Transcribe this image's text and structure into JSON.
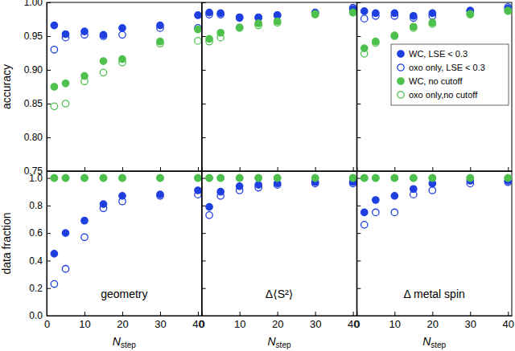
{
  "chart_data": [
    {
      "type": "scatter",
      "y_label": "accuracy",
      "tick_labels": "y",
      "x": [
        2,
        5,
        10,
        15,
        20,
        30,
        40
      ],
      "xlim": [
        0,
        41
      ],
      "xticks": [
        0,
        10,
        20,
        30,
        40
      ],
      "ylim": [
        0.75,
        1.0
      ],
      "yticks": [
        {
          "value": 0.75,
          "label": "0.75"
        },
        {
          "value": 0.8,
          "label": "0.80"
        },
        {
          "value": 0.85,
          "label": "0.85"
        },
        {
          "value": 0.9,
          "label": "0.90"
        },
        {
          "value": 0.95,
          "label": "0.95"
        },
        {
          "value": 1.0,
          "label": "1.00"
        }
      ],
      "series": [
        {
          "color": "#1f3fe0",
          "marker": "filled-circle",
          "values": [
            0.966,
            0.953,
            0.957,
            0.952,
            0.962,
            0.966,
            0.981
          ]
        },
        {
          "color": "#1f3fe0",
          "marker": "open-circle",
          "values": [
            0.93,
            0.948,
            0.952,
            0.95,
            0.952,
            0.962,
            0.962
          ]
        },
        {
          "color": "#4ec04e",
          "marker": "filled-circle",
          "values": [
            0.875,
            0.88,
            0.891,
            0.913,
            0.916,
            0.942,
            0.96
          ]
        },
        {
          "color": "#4ec04e",
          "marker": "open-circle",
          "values": [
            0.846,
            0.85,
            0.883,
            0.896,
            0.911,
            0.939,
            0.943
          ]
        }
      ]
    },
    {
      "type": "scatter",
      "tick_labels": false,
      "x": [
        2,
        5,
        10,
        15,
        20,
        30,
        40
      ],
      "xlim": [
        0,
        41
      ],
      "xticks": [
        0,
        10,
        20,
        30,
        40
      ],
      "ylim": [
        0.75,
        1.0
      ],
      "yticks": [
        0.75,
        0.8,
        0.85,
        0.9,
        0.95,
        1.0
      ],
      "series": [
        {
          "color": "#1f3fe0",
          "marker": "filled-circle",
          "values": [
            0.985,
            0.984,
            0.978,
            0.978,
            0.981,
            0.985,
            0.99
          ]
        },
        {
          "color": "#1f3fe0",
          "marker": "open-circle",
          "values": [
            0.982,
            0.982,
            0.977,
            0.977,
            0.981,
            0.984,
            0.992
          ]
        },
        {
          "color": "#4ec04e",
          "marker": "filled-circle",
          "values": [
            0.946,
            0.955,
            0.963,
            0.969,
            0.972,
            0.983,
            0.985
          ]
        },
        {
          "color": "#4ec04e",
          "marker": "open-circle",
          "values": [
            0.942,
            0.948,
            0.962,
            0.966,
            0.97,
            0.982,
            0.985
          ]
        }
      ]
    },
    {
      "type": "scatter",
      "tick_labels": false,
      "legend": "upper right",
      "x": [
        2,
        5,
        10,
        15,
        20,
        30,
        40
      ],
      "xlim": [
        0,
        41
      ],
      "xticks": [
        0,
        10,
        20,
        30,
        40
      ],
      "ylim": [
        0.75,
        1.0
      ],
      "yticks": [
        0.75,
        0.8,
        0.85,
        0.9,
        0.95,
        1.0
      ],
      "series": [
        {
          "name": "WC, LSE < 0.3",
          "color": "#1f3fe0",
          "marker": "filled-circle",
          "values": [
            0.987,
            0.984,
            0.984,
            0.98,
            0.984,
            0.988,
            0.991
          ]
        },
        {
          "name": "oxo only, LSE < 0.3",
          "color": "#1f3fe0",
          "marker": "open-circle",
          "values": [
            0.976,
            0.98,
            0.98,
            0.977,
            0.98,
            0.987,
            0.993
          ]
        },
        {
          "name": "WC, no cutoff",
          "color": "#4ec04e",
          "marker": "filled-circle",
          "values": [
            0.932,
            0.942,
            0.951,
            0.964,
            0.97,
            0.983,
            0.988
          ]
        },
        {
          "name": "oxo only,no cutoff",
          "color": "#4ec04e",
          "marker": "open-circle",
          "values": [
            0.924,
            0.94,
            0.95,
            0.962,
            0.968,
            0.982,
            0.987
          ]
        }
      ]
    },
    {
      "type": "scatter",
      "y_label": "data fraction",
      "x_label": "N",
      "x_label_sub": "step",
      "annotation": "geometry",
      "x": [
        2,
        5,
        10,
        15,
        20,
        30,
        40
      ],
      "xlim": [
        0,
        41
      ],
      "xticks": [
        0,
        10,
        20,
        30,
        40
      ],
      "ylim": [
        0,
        1.05
      ],
      "yticks": [
        {
          "value": 0,
          "label": "0.0"
        },
        {
          "value": 0.2,
          "label": "0.2"
        },
        {
          "value": 0.4,
          "label": "0.4"
        },
        {
          "value": 0.6,
          "label": "0.6"
        },
        {
          "value": 0.8,
          "label": "0.8"
        },
        {
          "value": 1.0,
          "label": "1.0"
        }
      ],
      "series": [
        {
          "color": "#1f3fe0",
          "marker": "filled-circle",
          "values": [
            0.45,
            0.6,
            0.69,
            0.81,
            0.87,
            0.88,
            0.91
          ]
        },
        {
          "color": "#1f3fe0",
          "marker": "open-circle",
          "values": [
            0.23,
            0.34,
            0.57,
            0.78,
            0.83,
            0.87,
            0.88
          ]
        },
        {
          "color": "#4ec04e",
          "marker": "filled-circle",
          "values": [
            1.0,
            1.0,
            1.0,
            1.0,
            1.0,
            1.0,
            1.0
          ]
        },
        {
          "color": "#4ec04e",
          "marker": "open-circle",
          "values": [
            1.0,
            1.0,
            1.0,
            1.0,
            1.0,
            1.0,
            1.0
          ]
        }
      ]
    },
    {
      "type": "scatter",
      "tick_labels": "x",
      "x_label": "N",
      "x_label_sub": "step",
      "annotation": "Δ⟨S²⟩",
      "x": [
        2,
        5,
        10,
        15,
        20,
        30,
        40
      ],
      "xlim": [
        0,
        41
      ],
      "xticks": [
        0,
        10,
        20,
        30,
        40
      ],
      "ylim": [
        0,
        1.05
      ],
      "yticks": [
        0,
        0.2,
        0.4,
        0.6,
        0.8,
        1.0
      ],
      "series": [
        {
          "color": "#1f3fe0",
          "marker": "filled-circle",
          "values": [
            0.79,
            0.9,
            0.94,
            0.95,
            0.96,
            0.97,
            0.97
          ]
        },
        {
          "color": "#1f3fe0",
          "marker": "open-circle",
          "values": [
            0.73,
            0.87,
            0.91,
            0.93,
            0.95,
            0.96,
            0.96
          ]
        },
        {
          "color": "#4ec04e",
          "marker": "filled-circle",
          "values": [
            1.0,
            1.0,
            1.0,
            1.0,
            1.0,
            1.0,
            1.0
          ]
        },
        {
          "color": "#4ec04e",
          "marker": "open-circle",
          "values": [
            1.0,
            1.0,
            1.0,
            1.0,
            1.0,
            1.0,
            1.0
          ]
        }
      ]
    },
    {
      "type": "scatter",
      "tick_labels": "x",
      "x_label": "N",
      "x_label_sub": "step",
      "annotation": "Δ metal spin",
      "x": [
        2,
        5,
        10,
        15,
        20,
        30,
        40
      ],
      "xlim": [
        0,
        41
      ],
      "xticks": [
        0,
        10,
        20,
        30,
        40
      ],
      "ylim": [
        0,
        1.05
      ],
      "yticks": [
        0,
        0.2,
        0.4,
        0.6,
        0.8,
        1.0
      ],
      "series": [
        {
          "color": "#1f3fe0",
          "marker": "filled-circle",
          "values": [
            0.75,
            0.84,
            0.87,
            0.92,
            0.96,
            0.98,
            0.98
          ]
        },
        {
          "color": "#1f3fe0",
          "marker": "open-circle",
          "values": [
            0.66,
            0.75,
            0.75,
            0.88,
            0.91,
            0.96,
            0.97
          ]
        },
        {
          "color": "#4ec04e",
          "marker": "filled-circle",
          "values": [
            1.0,
            1.0,
            1.0,
            1.0,
            1.0,
            1.0,
            1.0
          ]
        },
        {
          "color": "#4ec04e",
          "marker": "open-circle",
          "values": [
            1.0,
            1.0,
            1.0,
            1.0,
            1.0,
            1.0,
            1.0
          ]
        }
      ]
    }
  ]
}
